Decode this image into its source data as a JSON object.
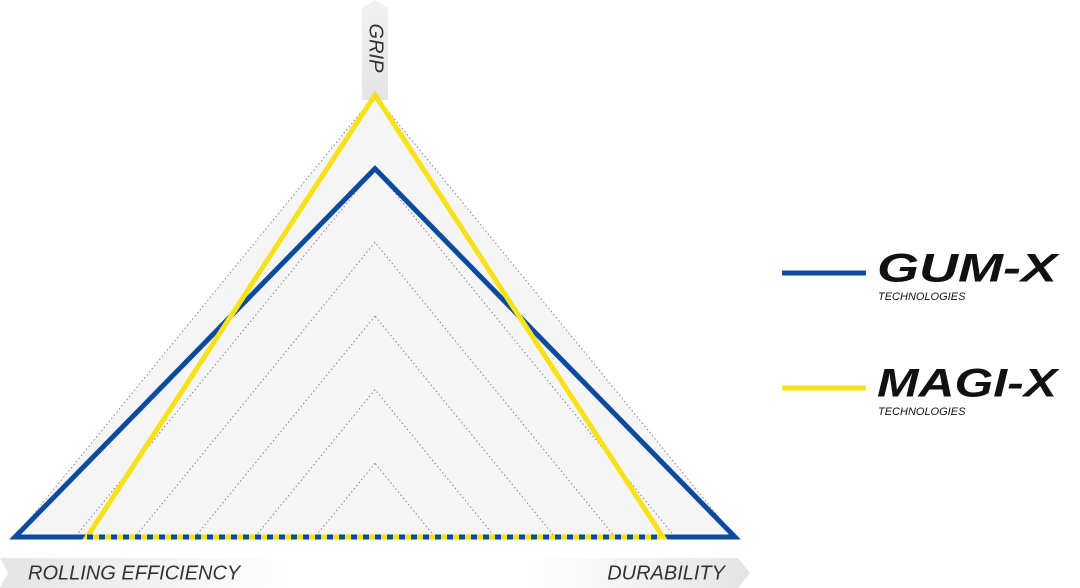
{
  "chart_data": {
    "type": "radar",
    "categories": [
      "GRIP",
      "ROLLING EFFICIENCY",
      "DURABILITY"
    ],
    "series": [
      {
        "name": "GUM-X",
        "color": "#0b4a9c",
        "values": [
          5,
          6,
          6
        ]
      },
      {
        "name": "MAGI-X",
        "color": "#f7e21a",
        "values": [
          6,
          4.8,
          4.8
        ]
      }
    ],
    "rlim": [
      0,
      6
    ],
    "rticks": [
      1,
      2,
      3,
      4,
      5,
      6
    ],
    "grid": true,
    "legend_tagline": "TECHNOLOGIES",
    "legend": "right"
  }
}
